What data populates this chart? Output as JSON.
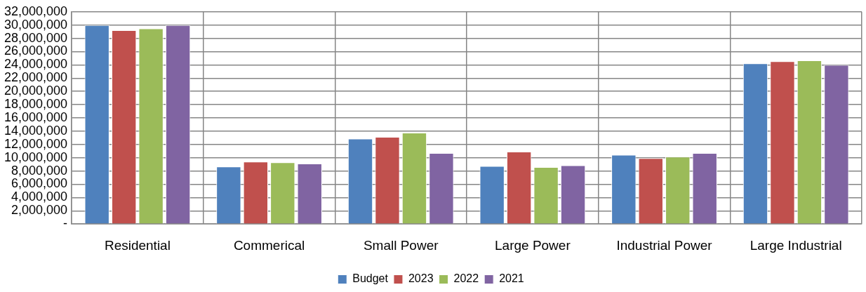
{
  "chart_data": {
    "type": "bar",
    "categories": [
      "Residential",
      "Commerical",
      "Small Power",
      "Large Power",
      "Industrial Power",
      "Large Industrial"
    ],
    "series": [
      {
        "name": "Budget",
        "color": "#4f81bd",
        "values": [
          30000000,
          8660000,
          12870000,
          8750000,
          10440000,
          24220000
        ]
      },
      {
        "name": "2023",
        "color": "#c0504d",
        "values": [
          29240000,
          9400000,
          13130000,
          10930000,
          9950000,
          24540000
        ]
      },
      {
        "name": "2022",
        "color": "#9bbb59",
        "values": [
          29500000,
          9300000,
          13780000,
          8590000,
          10150000,
          24670000
        ]
      },
      {
        "name": "2021",
        "color": "#8064a2",
        "values": [
          30000000,
          9110000,
          10700000,
          8850000,
          10700000,
          23990000
        ]
      }
    ],
    "ylim": [
      0,
      32000000
    ],
    "yticks": [
      {
        "value": 0,
        "label": "-"
      },
      {
        "value": 2000000,
        "label": "2,000,000"
      },
      {
        "value": 4000000,
        "label": "4,000,000"
      },
      {
        "value": 6000000,
        "label": "6,000,000"
      },
      {
        "value": 8000000,
        "label": "8,000,000"
      },
      {
        "value": 10000000,
        "label": "10,000,000"
      },
      {
        "value": 12000000,
        "label": "12,000,000"
      },
      {
        "value": 14000000,
        "label": "14,000,000"
      },
      {
        "value": 16000000,
        "label": "16,000,000"
      },
      {
        "value": 18000000,
        "label": "18,000,000"
      },
      {
        "value": 20000000,
        "label": "20,000,000"
      },
      {
        "value": 22000000,
        "label": "22,000,000"
      },
      {
        "value": 24000000,
        "label": "24,000,000"
      },
      {
        "value": 26000000,
        "label": "26,000,000"
      },
      {
        "value": 28000000,
        "label": "28,000,000"
      },
      {
        "value": 30000000,
        "label": "30,000,000"
      },
      {
        "value": 32000000,
        "label": "32,000,000"
      }
    ],
    "grid": true,
    "legend": "bottom"
  }
}
